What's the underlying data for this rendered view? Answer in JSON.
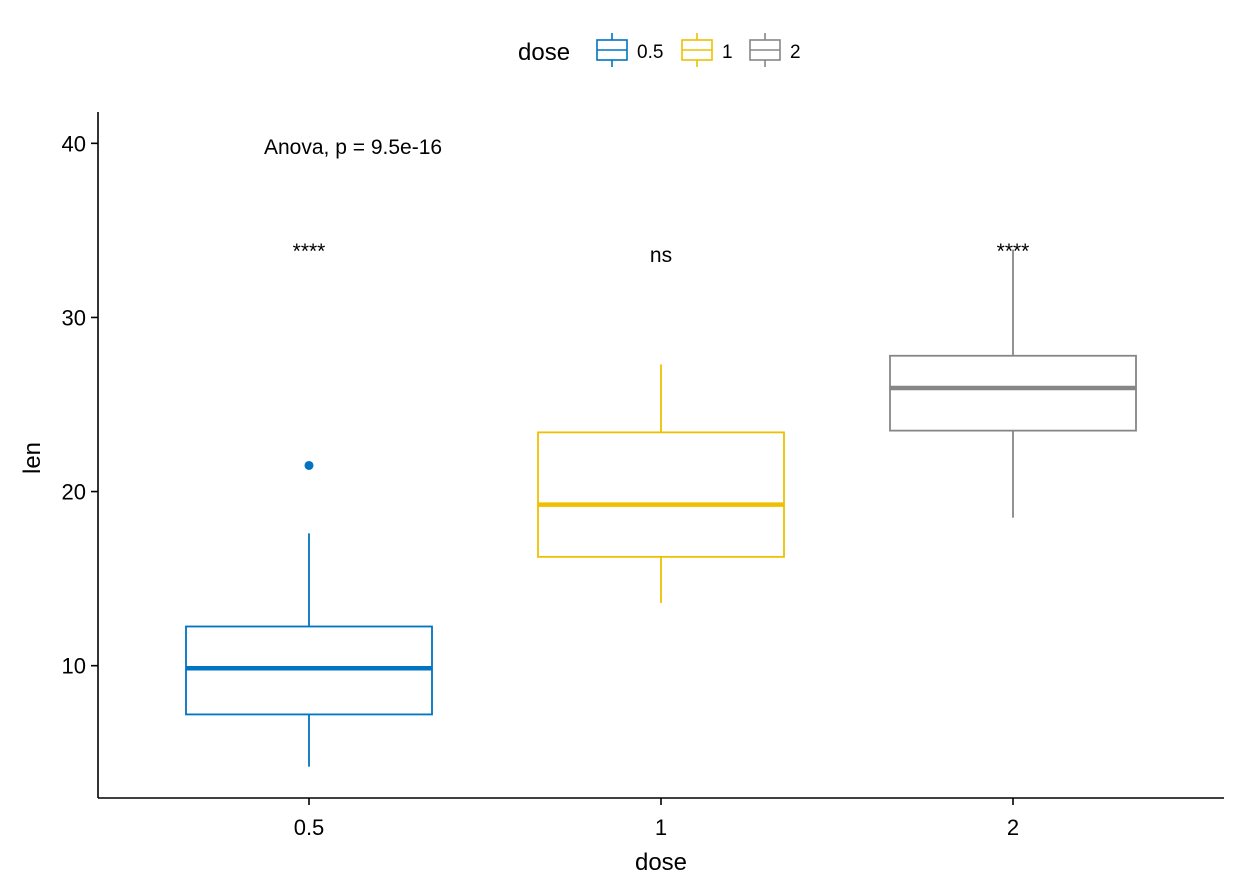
{
  "chart_data": {
    "type": "boxplot",
    "xlabel": "dose",
    "ylabel": "len",
    "categories": [
      "0.5",
      "1",
      "2"
    ],
    "ylim": [
      2.4,
      41.8
    ],
    "yticks": [
      10,
      20,
      30,
      40
    ],
    "legend": {
      "title": "dose",
      "position": "top",
      "entries": [
        "0.5",
        "1",
        "2"
      ]
    },
    "boxes": [
      {
        "category": "0.5",
        "color": "#0073C2",
        "whisker_low": 4.2,
        "q1": 7.2,
        "median": 9.85,
        "q3": 12.25,
        "whisker_high": 17.6,
        "outliers": [
          21.5
        ]
      },
      {
        "category": "1",
        "color": "#EFC000",
        "whisker_low": 13.6,
        "q1": 16.25,
        "median": 19.25,
        "q3": 23.4,
        "whisker_high": 27.3,
        "outliers": []
      },
      {
        "category": "2",
        "color": "#868686",
        "whisker_low": 18.5,
        "q1": 23.5,
        "median": 25.95,
        "q3": 27.8,
        "whisker_high": 33.9,
        "outliers": []
      }
    ],
    "annotations": {
      "test_label": "Anova, p = 9.5e-16",
      "significance": [
        "****",
        "ns",
        "****"
      ]
    },
    "grid": false
  }
}
